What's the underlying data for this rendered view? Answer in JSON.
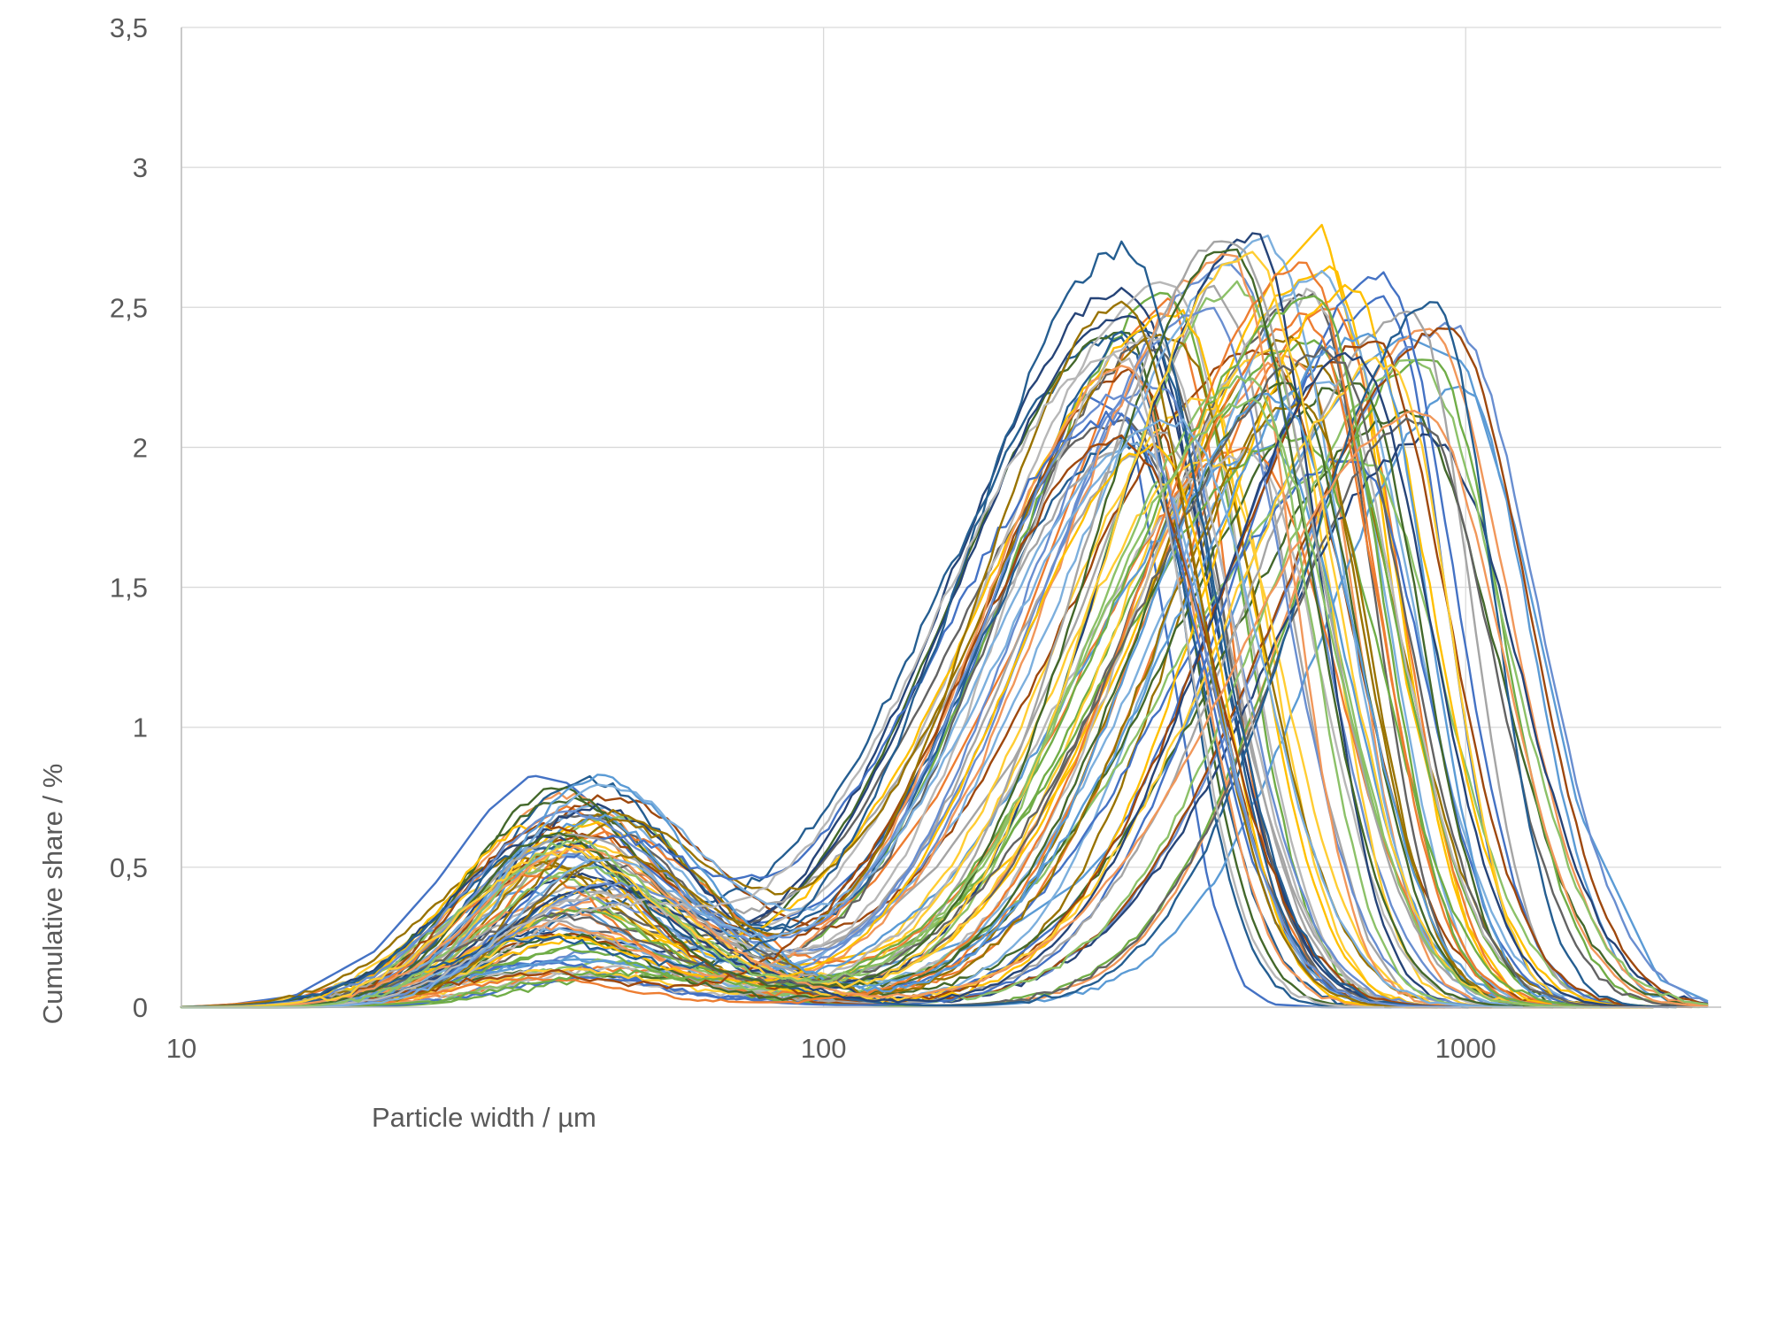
{
  "chart_data": {
    "type": "line",
    "title": "",
    "xlabel": "Particle width / µm",
    "ylabel": "Cumulative share / %",
    "x_scale": "log",
    "xlim": [
      10,
      2500
    ],
    "ylim": [
      0,
      3.5
    ],
    "x_ticks": [
      10,
      100,
      1000
    ],
    "x_tick_labels": [
      "10",
      "100",
      "1000"
    ],
    "y_ticks": [
      0,
      0.5,
      1,
      1.5,
      2,
      2.5,
      3,
      3.5
    ],
    "y_tick_labels": [
      "0",
      "0,5",
      "1",
      "1,5",
      "2",
      "2,5",
      "3",
      "3,5"
    ],
    "grid": true,
    "legend": "none",
    "palette": [
      "#4472c4",
      "#ed7d31",
      "#a5a5a5",
      "#ffc000",
      "#5b9bd5",
      "#70ad47",
      "#264478",
      "#9e480e",
      "#636363",
      "#997300",
      "#255e91",
      "#43682b",
      "#698ed0",
      "#f1975a",
      "#b7b7b7",
      "#ffcd33",
      "#7cafdd",
      "#8cc168"
    ],
    "series_count": 90,
    "series_shape": "bimodal: fine mode peak near 35–45 µm (height 0.1–0.84 %), valley near 80–90 µm, coarse mode peak between 280 and 1100 µm (height 2.0–2.8 %)",
    "series": [
      {
        "x": [
          10,
          12,
          15,
          20,
          25,
          30,
          35,
          40,
          45,
          50,
          60,
          70,
          80,
          90,
          100,
          120,
          150,
          200,
          250,
          300,
          350,
          400,
          450,
          500,
          600,
          700,
          800,
          1000,
          1200,
          1500,
          2000
        ],
        "values": [
          0,
          0.01,
          0.04,
          0.2,
          0.45,
          0.7,
          0.83,
          0.8,
          0.7,
          0.55,
          0.4,
          0.32,
          0.3,
          0.33,
          0.38,
          0.55,
          0.9,
          1.6,
          2.2,
          2.1,
          1.2,
          0.4,
          0.08,
          0.01,
          0,
          0,
          0,
          0,
          0,
          0,
          0
        ]
      },
      {
        "x": [
          10,
          12,
          15,
          20,
          25,
          30,
          35,
          40,
          45,
          50,
          60,
          70,
          80,
          90,
          100,
          120,
          150,
          200,
          250,
          300,
          350,
          400,
          450,
          500,
          600,
          700,
          800,
          1000,
          1200,
          1500,
          2000
        ],
        "values": [
          0,
          0.01,
          0.03,
          0.12,
          0.3,
          0.5,
          0.65,
          0.72,
          0.65,
          0.5,
          0.35,
          0.27,
          0.25,
          0.27,
          0.3,
          0.45,
          0.75,
          1.3,
          1.9,
          2.4,
          2.55,
          2.0,
          1.0,
          0.4,
          0.08,
          0.01,
          0,
          0,
          0,
          0,
          0
        ]
      },
      {
        "x": [
          10,
          12,
          15,
          20,
          25,
          30,
          35,
          40,
          45,
          50,
          60,
          70,
          80,
          90,
          100,
          120,
          150,
          200,
          250,
          300,
          350,
          400,
          450,
          500,
          600,
          700,
          800,
          1000,
          1200,
          1500,
          2000
        ],
        "values": [
          0,
          0.005,
          0.02,
          0.08,
          0.2,
          0.35,
          0.5,
          0.55,
          0.52,
          0.45,
          0.32,
          0.24,
          0.2,
          0.2,
          0.22,
          0.3,
          0.5,
          0.9,
          1.4,
          1.9,
          2.3,
          2.6,
          2.4,
          1.8,
          0.8,
          0.25,
          0.05,
          0,
          0,
          0,
          0
        ]
      },
      {
        "x": [
          10,
          12,
          15,
          20,
          25,
          30,
          35,
          40,
          45,
          50,
          60,
          70,
          80,
          90,
          100,
          120,
          150,
          200,
          250,
          300,
          350,
          400,
          450,
          500,
          600,
          700,
          800,
          1000,
          1200,
          1500,
          2000
        ],
        "values": [
          0,
          0.003,
          0.01,
          0.05,
          0.12,
          0.22,
          0.3,
          0.35,
          0.35,
          0.3,
          0.22,
          0.17,
          0.15,
          0.15,
          0.16,
          0.2,
          0.3,
          0.55,
          0.9,
          1.3,
          1.7,
          2.1,
          2.4,
          2.6,
          2.8,
          2.2,
          1.2,
          0.3,
          0.03,
          0,
          0
        ]
      },
      {
        "x": [
          10,
          12,
          15,
          20,
          25,
          30,
          35,
          40,
          45,
          50,
          60,
          70,
          80,
          90,
          100,
          120,
          150,
          200,
          250,
          300,
          350,
          400,
          450,
          500,
          600,
          700,
          800,
          1000,
          1200,
          1500,
          2000,
          2500
        ],
        "values": [
          0,
          0.002,
          0.008,
          0.03,
          0.07,
          0.12,
          0.15,
          0.17,
          0.17,
          0.15,
          0.12,
          0.1,
          0.09,
          0.1,
          0.11,
          0.14,
          0.2,
          0.3,
          0.45,
          0.65,
          0.9,
          1.2,
          1.5,
          1.8,
          2.1,
          2.3,
          2.4,
          2.3,
          1.7,
          0.7,
          0.1,
          0
        ]
      }
    ]
  }
}
